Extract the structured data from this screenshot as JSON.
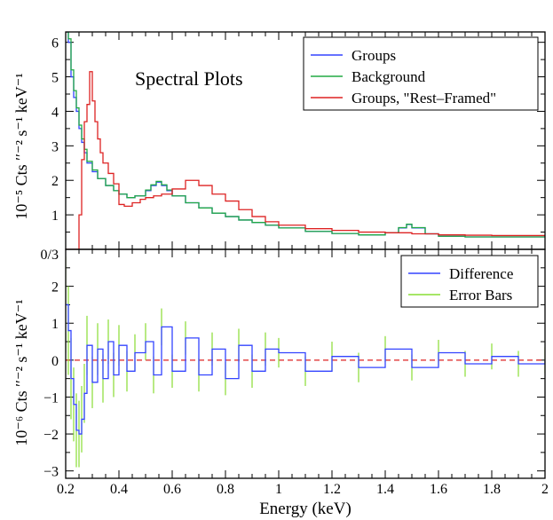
{
  "chart_data": [
    {
      "type": "line",
      "panel": "top",
      "annotation": "Spectral Plots",
      "ylabel": "10⁻⁵ Cts ′′⁻² s⁻¹ keV⁻¹",
      "ylim": [
        0,
        6.3
      ],
      "yticks": [
        1,
        2,
        3,
        4,
        5,
        6
      ],
      "ytick_labels": [
        "1",
        "2",
        "3",
        "4",
        "5",
        "6"
      ],
      "legend_position": "top-right",
      "series": [
        {
          "name": "Groups",
          "color": "#3344ff",
          "x": [
            0.2,
            0.21,
            0.22,
            0.23,
            0.24,
            0.25,
            0.26,
            0.27,
            0.28,
            0.3,
            0.32,
            0.35,
            0.38,
            0.4,
            0.43,
            0.46,
            0.5,
            0.52,
            0.54,
            0.56,
            0.58,
            0.6,
            0.65,
            0.7,
            0.75,
            0.8,
            0.85,
            0.9,
            0.95,
            1.0,
            1.1,
            1.2,
            1.3,
            1.4,
            1.45,
            1.48,
            1.5,
            1.55,
            1.6,
            1.7,
            1.8,
            1.9,
            2.0
          ],
          "values": [
            6.3,
            6.0,
            5.0,
            4.4,
            4.0,
            3.5,
            3.1,
            2.8,
            2.5,
            2.25,
            2.05,
            1.85,
            1.7,
            1.6,
            1.5,
            1.55,
            1.7,
            1.85,
            1.95,
            1.85,
            1.7,
            1.55,
            1.35,
            1.2,
            1.05,
            0.95,
            0.85,
            0.78,
            0.7,
            0.62,
            0.52,
            0.46,
            0.42,
            0.48,
            0.62,
            0.72,
            0.62,
            0.45,
            0.38,
            0.36,
            0.36,
            0.36,
            0.36
          ]
        },
        {
          "name": "Background",
          "color": "#22aa44",
          "x": [
            0.2,
            0.21,
            0.22,
            0.23,
            0.24,
            0.25,
            0.26,
            0.27,
            0.28,
            0.3,
            0.32,
            0.35,
            0.38,
            0.4,
            0.43,
            0.46,
            0.5,
            0.52,
            0.54,
            0.56,
            0.58,
            0.6,
            0.65,
            0.7,
            0.75,
            0.8,
            0.85,
            0.9,
            0.95,
            1.0,
            1.1,
            1.2,
            1.3,
            1.4,
            1.45,
            1.48,
            1.5,
            1.55,
            1.6,
            1.7,
            1.8,
            1.9,
            2.0
          ],
          "values": [
            6.3,
            6.1,
            5.2,
            4.6,
            4.1,
            3.6,
            3.2,
            2.9,
            2.55,
            2.3,
            2.05,
            1.85,
            1.7,
            1.6,
            1.5,
            1.55,
            1.72,
            1.87,
            1.97,
            1.87,
            1.72,
            1.55,
            1.35,
            1.2,
            1.05,
            0.95,
            0.85,
            0.78,
            0.7,
            0.62,
            0.52,
            0.46,
            0.42,
            0.48,
            0.63,
            0.73,
            0.63,
            0.45,
            0.38,
            0.36,
            0.36,
            0.36,
            0.36
          ]
        },
        {
          "name": "Groups, \"Rest–Framed\"",
          "color": "#dd2222",
          "x": [
            0.2,
            0.24,
            0.25,
            0.26,
            0.27,
            0.28,
            0.29,
            0.3,
            0.31,
            0.32,
            0.33,
            0.34,
            0.36,
            0.38,
            0.4,
            0.42,
            0.45,
            0.48,
            0.5,
            0.53,
            0.56,
            0.6,
            0.65,
            0.7,
            0.75,
            0.8,
            0.85,
            0.9,
            0.95,
            1.0,
            1.1,
            1.2,
            1.3,
            1.4,
            1.5,
            1.6,
            1.7,
            1.8,
            1.9,
            2.0
          ],
          "values": [
            0.0,
            0.0,
            1.0,
            2.6,
            3.7,
            4.2,
            5.15,
            4.3,
            3.7,
            3.2,
            2.8,
            2.5,
            2.2,
            1.9,
            1.3,
            1.25,
            1.35,
            1.45,
            1.5,
            1.55,
            1.6,
            1.75,
            2.0,
            1.85,
            1.6,
            1.4,
            1.15,
            0.95,
            0.8,
            0.7,
            0.6,
            0.55,
            0.5,
            0.48,
            0.45,
            0.42,
            0.41,
            0.4,
            0.4,
            0.38
          ]
        }
      ]
    },
    {
      "type": "line",
      "panel": "bottom",
      "xlabel": "Energy (keV)",
      "ylabel": "10⁻⁶ Cts ′′⁻² s⁻¹ keV⁻¹",
      "xlim": [
        0.2,
        2.0
      ],
      "ylim": [
        -3.2,
        3.0
      ],
      "xticks": [
        0.2,
        0.4,
        0.6,
        0.8,
        1.0,
        1.2,
        1.4,
        1.6,
        1.8,
        2.0
      ],
      "xtick_labels": [
        "0.2",
        "0.4",
        "0.6",
        "0.8",
        "1",
        "1.2",
        "1.4",
        "1.6",
        "1.8",
        "2"
      ],
      "yticks": [
        -3,
        -2,
        -1,
        0,
        1,
        2
      ],
      "ytick_labels": [
        "−3",
        "−2",
        "−1",
        "0",
        "1",
        "2"
      ],
      "shared_tick_label": "0/3",
      "zero_line_color": "#dd2222",
      "legend_position": "top-right",
      "series": [
        {
          "name": "Difference",
          "color": "#3344ff",
          "x": [
            0.2,
            0.21,
            0.22,
            0.23,
            0.24,
            0.25,
            0.26,
            0.27,
            0.28,
            0.3,
            0.32,
            0.34,
            0.36,
            0.38,
            0.4,
            0.43,
            0.46,
            0.5,
            0.53,
            0.56,
            0.6,
            0.65,
            0.7,
            0.75,
            0.8,
            0.85,
            0.9,
            0.95,
            1.0,
            1.1,
            1.2,
            1.3,
            1.4,
            1.5,
            1.6,
            1.7,
            1.8,
            1.9,
            2.0
          ],
          "values": [
            1.5,
            0.8,
            -0.5,
            -1.2,
            -1.9,
            -2.0,
            -1.6,
            -0.9,
            0.4,
            -0.6,
            0.3,
            -0.5,
            0.5,
            -0.4,
            0.4,
            -0.3,
            0.2,
            0.5,
            -0.4,
            0.9,
            -0.3,
            0.6,
            -0.4,
            0.3,
            -0.5,
            0.4,
            -0.3,
            0.3,
            0.2,
            -0.3,
            0.1,
            -0.2,
            0.3,
            -0.2,
            0.2,
            -0.1,
            0.1,
            -0.1,
            0.0
          ]
        },
        {
          "name": "Error Bars",
          "color": "#88dd33",
          "x": [
            0.2,
            0.21,
            0.22,
            0.23,
            0.24,
            0.25,
            0.26,
            0.27,
            0.28,
            0.3,
            0.32,
            0.34,
            0.36,
            0.38,
            0.4,
            0.43,
            0.46,
            0.5,
            0.53,
            0.56,
            0.6,
            0.65,
            0.7,
            0.75,
            0.8,
            0.85,
            0.9,
            0.95,
            1.0,
            1.1,
            1.2,
            1.3,
            1.4,
            1.5,
            1.6,
            1.7,
            1.8,
            1.9,
            2.0
          ],
          "values": [
            1.3,
            1.2,
            1.1,
            1.0,
            1.0,
            0.9,
            0.9,
            0.8,
            0.8,
            0.7,
            0.7,
            0.65,
            0.6,
            0.6,
            0.55,
            0.55,
            0.5,
            0.5,
            0.5,
            0.5,
            0.45,
            0.45,
            0.45,
            0.45,
            0.45,
            0.45,
            0.45,
            0.45,
            0.4,
            0.4,
            0.4,
            0.4,
            0.35,
            0.35,
            0.35,
            0.35,
            0.35,
            0.35,
            0.35
          ]
        }
      ]
    }
  ]
}
